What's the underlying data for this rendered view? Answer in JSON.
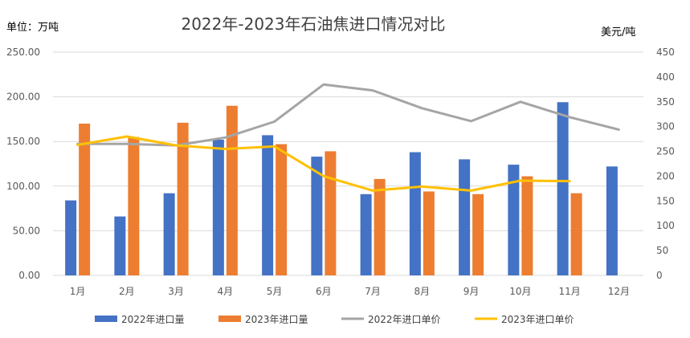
{
  "chart_data": {
    "type": "bar",
    "title": "2022年-2023年石油焦进口情况对比",
    "ylabel_left": "单位：万吨",
    "ylabel_right": "美元/吨",
    "categories": [
      "1月",
      "2月",
      "3月",
      "4月",
      "5月",
      "6月",
      "7月",
      "8月",
      "9月",
      "10月",
      "11月",
      "12月"
    ],
    "y_left": {
      "min": 0,
      "max": 250,
      "ticks": [
        "0.00",
        "50.00",
        "100.00",
        "150.00",
        "200.00",
        "250.00"
      ]
    },
    "y_right": {
      "min": 0,
      "max": 450,
      "ticks": [
        "0",
        "50",
        "100",
        "150",
        "200",
        "250",
        "300",
        "350",
        "400",
        "450"
      ]
    },
    "grid": true,
    "legend_position": "bottom",
    "series": [
      {
        "name": "2022年进口量",
        "type": "bar",
        "axis": "left",
        "color": "#4472C4",
        "values": [
          84,
          66,
          92,
          152,
          157,
          133,
          91,
          138,
          130,
          124,
          194,
          122
        ]
      },
      {
        "name": "2023年进口量",
        "type": "bar",
        "axis": "left",
        "color": "#ED7D31",
        "values": [
          170,
          155,
          171,
          190,
          147,
          139,
          108,
          94,
          91,
          111,
          92,
          null
        ]
      },
      {
        "name": "2022年进口单价",
        "type": "line",
        "axis": "right",
        "color": "#A5A5A5",
        "values": [
          265,
          265,
          262,
          278,
          310,
          385,
          373,
          337,
          311,
          350,
          319,
          294
        ]
      },
      {
        "name": "2023年进口单价",
        "type": "line",
        "axis": "right",
        "color": "#FFC000",
        "values": [
          263,
          280,
          262,
          255,
          260,
          200,
          171,
          179,
          171,
          191,
          190,
          null
        ]
      }
    ]
  }
}
